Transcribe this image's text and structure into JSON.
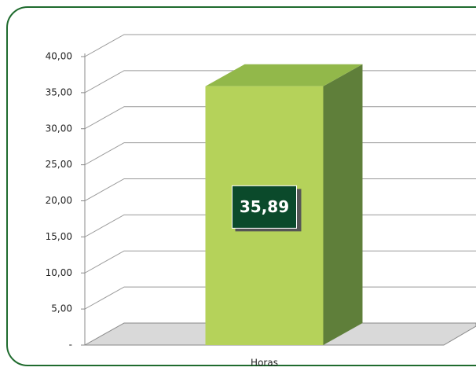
{
  "chart_data": {
    "type": "bar3d",
    "categories": [
      "Horas"
    ],
    "values": [
      35.89
    ],
    "value_labels": [
      "35,89"
    ],
    "color": "#b5d25a",
    "ylim": [
      0,
      40
    ],
    "yticks": [
      {
        "value": 0,
        "label": "-"
      },
      {
        "value": 5,
        "label": "5,00"
      },
      {
        "value": 10,
        "label": "10,00"
      },
      {
        "value": 15,
        "label": "15,00"
      },
      {
        "value": 20,
        "label": "20,00"
      },
      {
        "value": 25,
        "label": "25,00"
      },
      {
        "value": 30,
        "label": "30,00"
      },
      {
        "value": 35,
        "label": "35,00"
      },
      {
        "value": 40,
        "label": "40,00"
      }
    ],
    "grid": true
  }
}
